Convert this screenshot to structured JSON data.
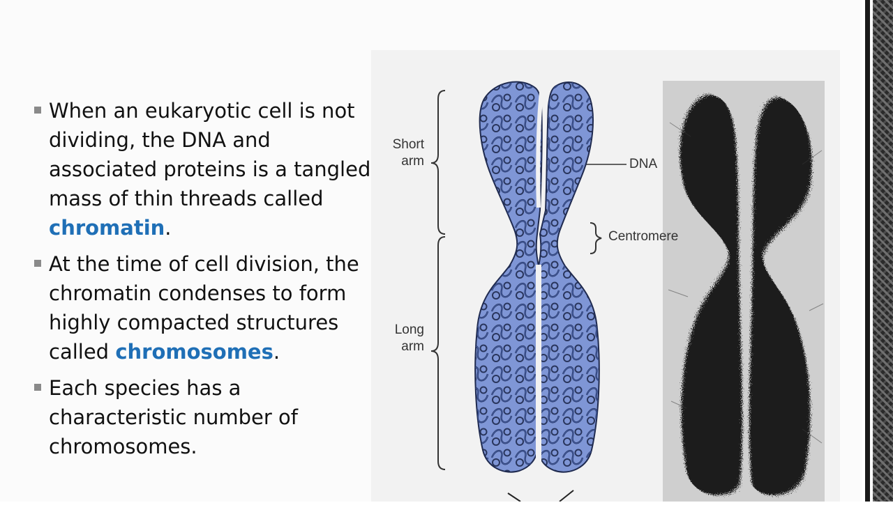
{
  "bullets": [
    {
      "before": "When an eukaryotic cell is not dividing, the DNA and associated proteins is a tangled mass of thin threads called ",
      "term": "chromatin",
      "after": "."
    },
    {
      "before": "At the time of cell division, the chromatin condenses to form highly compacted structures called ",
      "term": "chromosomes",
      "after": "."
    },
    {
      "before": "Each species has a characteristic number of chromosomes.",
      "term": "",
      "after": ""
    }
  ],
  "figure": {
    "labels": {
      "short_arm_1": "Short",
      "short_arm_2": "arm",
      "long_arm_1": "Long",
      "long_arm_2": "arm",
      "dna": "DNA",
      "centromere": "Centromere"
    }
  },
  "colors": {
    "term": "#1f6fb6",
    "chromatid_fill": "#7f96d6",
    "chromatid_outline": "#1f2a4f"
  }
}
